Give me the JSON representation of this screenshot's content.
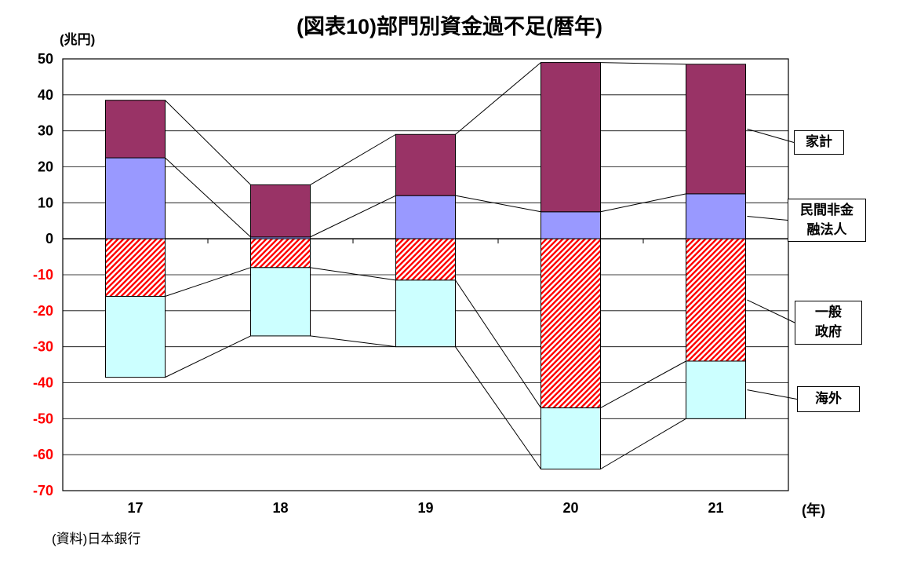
{
  "title": "(図表10)部門別資金過不足(暦年)",
  "y_unit_label": "(兆円)",
  "x_unit_label": "(年)",
  "source": "(資料)日本銀行",
  "colors": {
    "axis_negative_label": "#FF0000",
    "hatch_red": "#FF0000",
    "household": "#993366",
    "nonfinancial_corporations": "#9999FF",
    "overseas": "#CCFFFF"
  },
  "legend": [
    {
      "series": "家計",
      "lines": [
        "家計"
      ]
    },
    {
      "series": "民間非金融法人",
      "lines": [
        "民間非金",
        "融法人"
      ]
    },
    {
      "series": "一般政府",
      "lines": [
        "一般",
        "政府"
      ]
    },
    {
      "series": "海外",
      "lines": [
        "海外"
      ]
    }
  ],
  "chart_data": {
    "type": "bar",
    "stacked": true,
    "title": "(図表10)部門別資金過不足(暦年)",
    "ylabel": "(兆円)",
    "xlabel": "(年)",
    "categories": [
      "17",
      "18",
      "19",
      "20",
      "21"
    ],
    "series": [
      {
        "name": "民間非金融法人",
        "values": [
          22.5,
          0.5,
          12,
          7.5,
          12.5
        ],
        "fill": "solid",
        "color": "#9999FF"
      },
      {
        "name": "家計",
        "values": [
          16,
          14.5,
          17,
          41.5,
          36
        ],
        "fill": "solid",
        "color": "#993366"
      },
      {
        "name": "一般政府",
        "values": [
          -16,
          -8,
          -11.5,
          -47,
          -34
        ],
        "fill": "hatch",
        "color": "#FF0000"
      },
      {
        "name": "海外",
        "values": [
          -22.5,
          -19,
          -18.5,
          -17,
          -16
        ],
        "fill": "solid",
        "color": "#CCFFFF"
      }
    ],
    "ylim": [
      -70,
      50
    ],
    "ytick_step": 10,
    "grid": true,
    "series_lines": true,
    "legend_position": "right-callouts"
  }
}
